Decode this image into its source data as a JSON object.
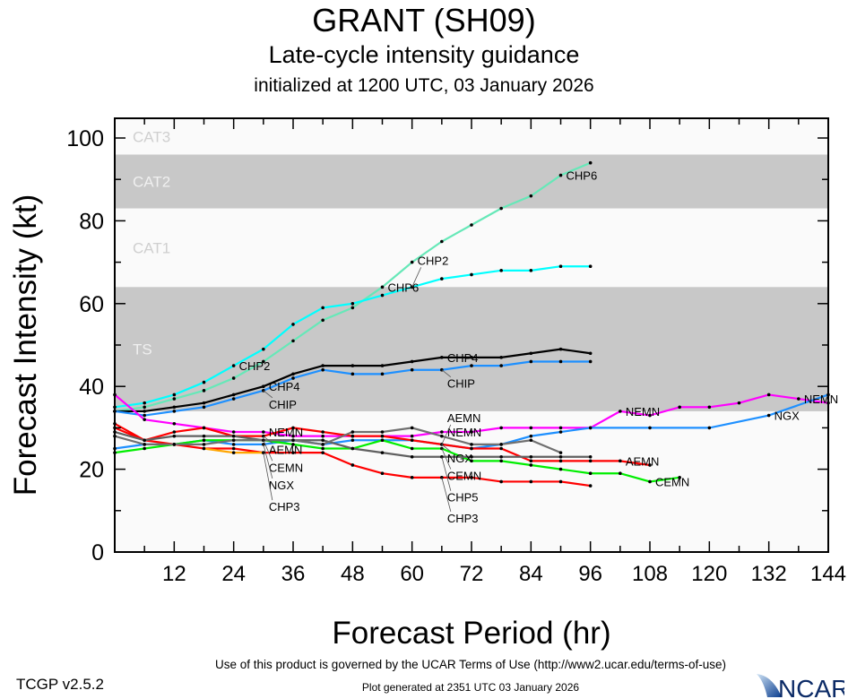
{
  "chart_data": {
    "type": "line",
    "title": "GRANT (SH09)",
    "subtitle": "Late-cycle intensity guidance",
    "initialized": "initialized at 1200 UTC, 03 January 2026",
    "xlabel": "Forecast Period (hr)",
    "ylabel": "Forecast Intensity (kt)",
    "xlim": [
      0,
      144
    ],
    "ylim": [
      0,
      105
    ],
    "xticks": [
      12,
      24,
      36,
      48,
      60,
      72,
      84,
      96,
      108,
      120,
      132,
      144
    ],
    "yticks": [
      0,
      20,
      40,
      60,
      80,
      100
    ],
    "bands": [
      {
        "label": "TS",
        "range": [
          34,
          64
        ],
        "shaded": true
      },
      {
        "label": "CAT1",
        "range": [
          64,
          83
        ],
        "shaded": false
      },
      {
        "label": "CAT2",
        "range": [
          83,
          96
        ],
        "shaded": true
      },
      {
        "label": "CAT3",
        "range": [
          96,
          113
        ],
        "shaded": false
      }
    ],
    "series": [
      {
        "name": "CHP6",
        "color": "#66e8b8",
        "label_at": [
          54,
          90
        ],
        "x": [
          0,
          6,
          12,
          18,
          24,
          30,
          36,
          42,
          48,
          54,
          60,
          66,
          72,
          78,
          84,
          90,
          96
        ],
        "y": [
          34,
          35,
          37,
          39,
          42,
          46,
          51,
          56,
          59,
          64,
          70,
          75,
          79,
          83,
          86,
          91,
          94
        ]
      },
      {
        "name": "CHP2",
        "color": "#00ffff",
        "label_at": [
          24,
          60
        ],
        "x": [
          0,
          6,
          12,
          18,
          24,
          30,
          36,
          42,
          48,
          54,
          60,
          66,
          72,
          78,
          84,
          90,
          96
        ],
        "y": [
          35,
          36,
          38,
          41,
          45,
          49,
          55,
          59,
          60,
          62,
          64,
          66,
          67,
          68,
          68,
          69,
          69
        ]
      },
      {
        "name": "CHP4",
        "color": "#000000",
        "label_at": [
          30,
          66
        ],
        "x": [
          0,
          6,
          12,
          18,
          24,
          30,
          36,
          42,
          48,
          54,
          60,
          66,
          72,
          78,
          84,
          90,
          96
        ],
        "y": [
          34,
          34,
          35,
          36,
          38,
          40,
          43,
          45,
          45,
          45,
          46,
          47,
          47,
          47,
          48,
          49,
          48
        ]
      },
      {
        "name": "CHIP",
        "color": "#1e90ff",
        "label_at": [
          30,
          66
        ],
        "x": [
          0,
          6,
          12,
          18,
          24,
          30,
          36,
          42,
          48,
          54,
          60,
          66,
          72,
          78,
          84,
          90,
          96
        ],
        "y": [
          34,
          33,
          34,
          35,
          37,
          39,
          42,
          44,
          43,
          43,
          44,
          44,
          45,
          45,
          46,
          46,
          46
        ]
      },
      {
        "name": "NEMN",
        "color": "#ff00ff",
        "label_at": [
          30,
          66,
          102,
          138
        ],
        "x": [
          0,
          6,
          12,
          18,
          24,
          30,
          36,
          42,
          48,
          54,
          60,
          66,
          72,
          78,
          84,
          90,
          96,
          102,
          108,
          114,
          120,
          126,
          132,
          138,
          144
        ],
        "y": [
          38,
          32,
          31,
          30,
          29,
          29,
          28,
          28,
          28,
          28,
          28,
          29,
          29,
          30,
          30,
          30,
          30,
          34,
          33,
          35,
          35,
          36,
          38,
          37,
          36
        ]
      },
      {
        "name": "NGX",
        "color": "#1e90ff",
        "label_at": [
          30,
          66,
          102,
          132
        ],
        "x": [
          0,
          6,
          12,
          18,
          24,
          30,
          36,
          42,
          48,
          54,
          60,
          66,
          72,
          78,
          84,
          90,
          96,
          108,
          120,
          132,
          144
        ],
        "y": [
          25,
          26,
          26,
          27,
          26,
          26,
          27,
          26,
          27,
          27,
          27,
          26,
          25,
          26,
          28,
          29,
          30,
          30,
          30,
          33,
          38
        ]
      },
      {
        "name": "AEMN",
        "color": "#ff0000",
        "label_at": [
          30,
          66,
          102
        ],
        "x": [
          0,
          6,
          12,
          18,
          24,
          30,
          36,
          42,
          48,
          54,
          60,
          66,
          72,
          78,
          84,
          90,
          96,
          102,
          108
        ],
        "y": [
          31,
          27,
          29,
          30,
          28,
          28,
          30,
          29,
          28,
          28,
          27,
          26,
          25,
          25,
          22,
          22,
          22,
          22,
          21
        ]
      },
      {
        "name": "CEMN",
        "color": "#00ee00",
        "label_at": [
          30,
          66,
          108
        ],
        "x": [
          0,
          6,
          12,
          18,
          24,
          30,
          36,
          42,
          48,
          54,
          60,
          66,
          72,
          78,
          84,
          90,
          96,
          102,
          108,
          114
        ],
        "y": [
          24,
          25,
          26,
          27,
          27,
          27,
          26,
          25,
          25,
          27,
          25,
          25,
          22,
          22,
          21,
          20,
          19,
          19,
          17,
          18
        ]
      },
      {
        "name": "CHP3",
        "color": "#ff0000",
        "label_at": [
          30,
          66
        ],
        "x": [
          0,
          6,
          12,
          18,
          24,
          30,
          36,
          42,
          48,
          54,
          60,
          66,
          72,
          78,
          84,
          90,
          96
        ],
        "y": [
          30,
          27,
          26,
          25,
          25,
          24,
          24,
          24,
          21,
          19,
          18,
          18,
          18,
          17,
          17,
          17,
          16
        ]
      },
      {
        "name": "CHP5",
        "color": "#606060",
        "label_at": [
          66
        ],
        "x": [
          0,
          6,
          12,
          18,
          24,
          30,
          36,
          42,
          48,
          54,
          60,
          66,
          72,
          78,
          84,
          90,
          96
        ],
        "y": [
          29,
          27,
          28,
          28,
          28,
          27,
          27,
          27,
          25,
          24,
          23,
          23,
          23,
          23,
          23,
          23,
          23
        ]
      },
      {
        "color": "#707070",
        "x": [
          0,
          6,
          12,
          18,
          24,
          30,
          36,
          42,
          48,
          54,
          60,
          66,
          72,
          78,
          84,
          90
        ],
        "y": [
          28,
          26,
          26,
          26,
          27,
          27,
          27,
          26,
          29,
          29,
          30,
          28,
          26,
          26,
          27,
          24
        ]
      },
      {
        "color": "#ffa500",
        "x": [
          18,
          24,
          30
        ],
        "y": [
          25,
          24,
          24
        ]
      }
    ]
  },
  "footer": {
    "terms": "Use of this product is governed by the UCAR Terms of Use (http://www2.ucar.edu/terms-of-use)",
    "version": "TCGP v2.5.2",
    "generated": "Plot generated at 2351 UTC   03 January 2026",
    "logo": "NCAR"
  }
}
